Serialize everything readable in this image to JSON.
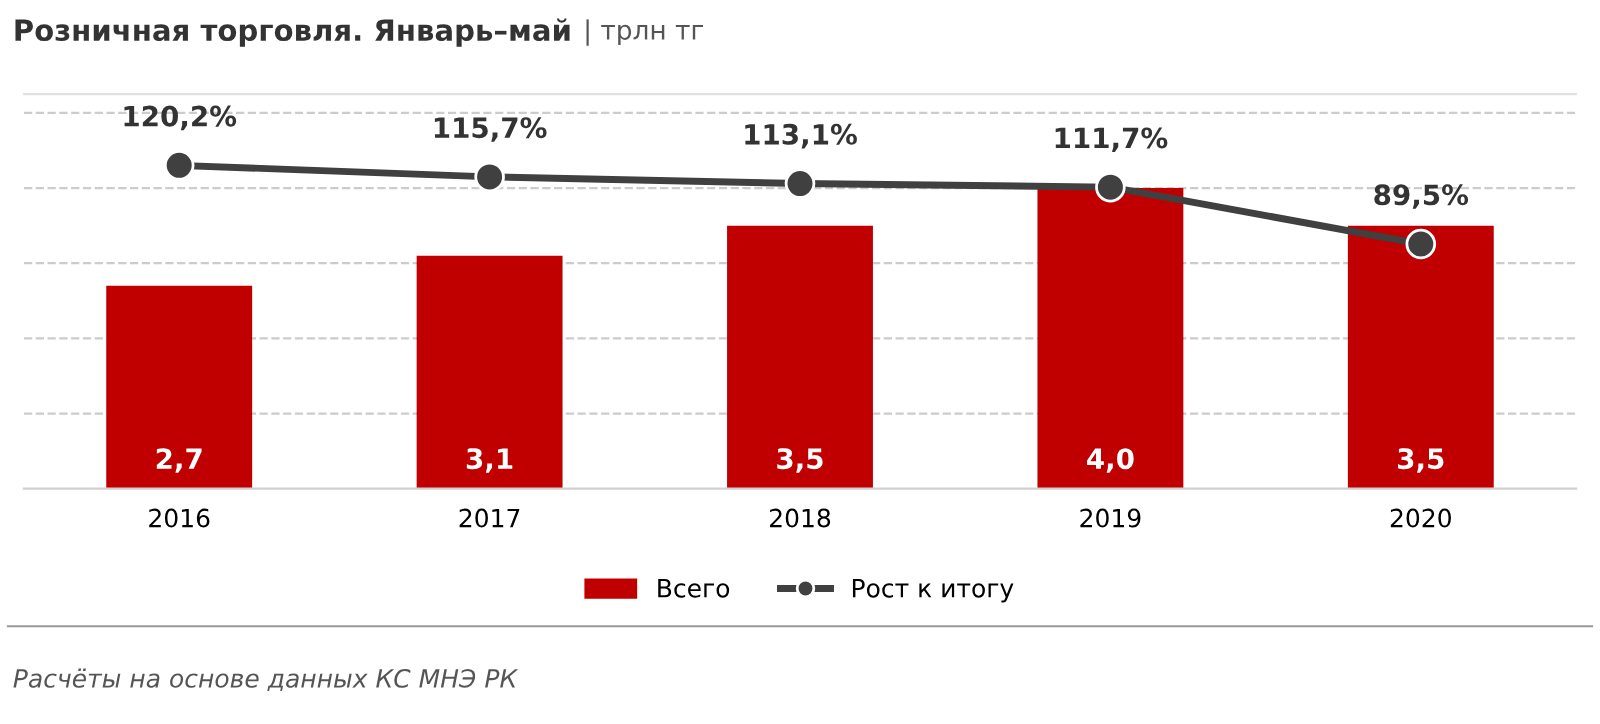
{
  "chart_data": {
    "type": "bar",
    "title": "Розничная торговля. Январь–май",
    "subtitle": "| трлн тг",
    "categories": [
      "2016",
      "2017",
      "2018",
      "2019",
      "2020"
    ],
    "series": [
      {
        "name": "Всего",
        "color": "#c00000",
        "values": [
          2.7,
          3.1,
          3.5,
          4.0,
          3.5
        ],
        "value_labels": [
          "2,7",
          "3,1",
          "3,5",
          "4,0",
          "3,5"
        ]
      },
      {
        "name": "Рост к итогу",
        "type": "line",
        "axis": "y2",
        "color": "#404040",
        "marker": "circle",
        "values": [
          120.2,
          115.7,
          113.1,
          111.7,
          89.5
        ],
        "value_labels": [
          "120,2%",
          "115,7%",
          "113,1%",
          "111,7%",
          "89,5%"
        ]
      }
    ],
    "ylim": [
      0,
      5.25
    ],
    "yticks": [
      {
        "value": 1,
        "label": null
      },
      {
        "value": 2,
        "label": null
      },
      {
        "value": 3,
        "label": null
      },
      {
        "value": 4,
        "label": null
      },
      {
        "value": 5,
        "label": null
      }
    ],
    "y2lim": [
      -6,
      148
    ],
    "tick_labels": "x",
    "grid": "y",
    "legend": "bottom",
    "annotations": [
      "Расчёты на основе данных КС МНЭ РК"
    ]
  }
}
